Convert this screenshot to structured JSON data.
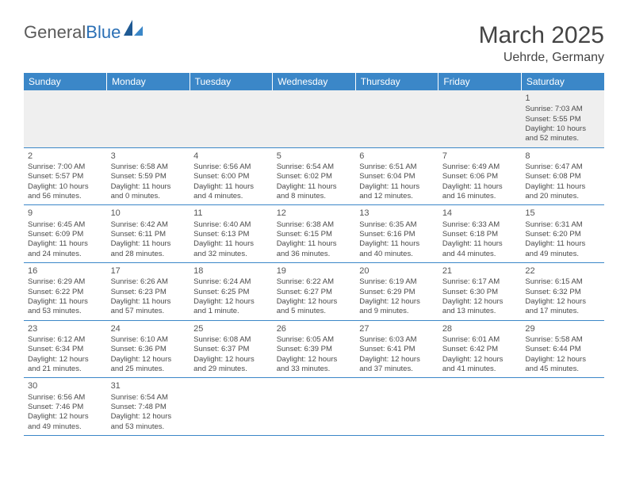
{
  "logo": {
    "text1": "General",
    "text2": "Blue"
  },
  "title": "March 2025",
  "location": "Uehrde, Germany",
  "dayHeaders": [
    "Sunday",
    "Monday",
    "Tuesday",
    "Wednesday",
    "Thursday",
    "Friday",
    "Saturday"
  ],
  "colors": {
    "headerBg": "#3b87c8",
    "headerText": "#ffffff",
    "rowBorder": "#3b87c8",
    "firstRowBg": "#efefef",
    "logoBlue": "#2a6fb5",
    "textGray": "#5a5a5a"
  },
  "weeks": [
    [
      null,
      null,
      null,
      null,
      null,
      null,
      {
        "n": "1",
        "sr": "Sunrise: 7:03 AM",
        "ss": "Sunset: 5:55 PM",
        "d1": "Daylight: 10 hours",
        "d2": "and 52 minutes."
      }
    ],
    [
      {
        "n": "2",
        "sr": "Sunrise: 7:00 AM",
        "ss": "Sunset: 5:57 PM",
        "d1": "Daylight: 10 hours",
        "d2": "and 56 minutes."
      },
      {
        "n": "3",
        "sr": "Sunrise: 6:58 AM",
        "ss": "Sunset: 5:59 PM",
        "d1": "Daylight: 11 hours",
        "d2": "and 0 minutes."
      },
      {
        "n": "4",
        "sr": "Sunrise: 6:56 AM",
        "ss": "Sunset: 6:00 PM",
        "d1": "Daylight: 11 hours",
        "d2": "and 4 minutes."
      },
      {
        "n": "5",
        "sr": "Sunrise: 6:54 AM",
        "ss": "Sunset: 6:02 PM",
        "d1": "Daylight: 11 hours",
        "d2": "and 8 minutes."
      },
      {
        "n": "6",
        "sr": "Sunrise: 6:51 AM",
        "ss": "Sunset: 6:04 PM",
        "d1": "Daylight: 11 hours",
        "d2": "and 12 minutes."
      },
      {
        "n": "7",
        "sr": "Sunrise: 6:49 AM",
        "ss": "Sunset: 6:06 PM",
        "d1": "Daylight: 11 hours",
        "d2": "and 16 minutes."
      },
      {
        "n": "8",
        "sr": "Sunrise: 6:47 AM",
        "ss": "Sunset: 6:08 PM",
        "d1": "Daylight: 11 hours",
        "d2": "and 20 minutes."
      }
    ],
    [
      {
        "n": "9",
        "sr": "Sunrise: 6:45 AM",
        "ss": "Sunset: 6:09 PM",
        "d1": "Daylight: 11 hours",
        "d2": "and 24 minutes."
      },
      {
        "n": "10",
        "sr": "Sunrise: 6:42 AM",
        "ss": "Sunset: 6:11 PM",
        "d1": "Daylight: 11 hours",
        "d2": "and 28 minutes."
      },
      {
        "n": "11",
        "sr": "Sunrise: 6:40 AM",
        "ss": "Sunset: 6:13 PM",
        "d1": "Daylight: 11 hours",
        "d2": "and 32 minutes."
      },
      {
        "n": "12",
        "sr": "Sunrise: 6:38 AM",
        "ss": "Sunset: 6:15 PM",
        "d1": "Daylight: 11 hours",
        "d2": "and 36 minutes."
      },
      {
        "n": "13",
        "sr": "Sunrise: 6:35 AM",
        "ss": "Sunset: 6:16 PM",
        "d1": "Daylight: 11 hours",
        "d2": "and 40 minutes."
      },
      {
        "n": "14",
        "sr": "Sunrise: 6:33 AM",
        "ss": "Sunset: 6:18 PM",
        "d1": "Daylight: 11 hours",
        "d2": "and 44 minutes."
      },
      {
        "n": "15",
        "sr": "Sunrise: 6:31 AM",
        "ss": "Sunset: 6:20 PM",
        "d1": "Daylight: 11 hours",
        "d2": "and 49 minutes."
      }
    ],
    [
      {
        "n": "16",
        "sr": "Sunrise: 6:29 AM",
        "ss": "Sunset: 6:22 PM",
        "d1": "Daylight: 11 hours",
        "d2": "and 53 minutes."
      },
      {
        "n": "17",
        "sr": "Sunrise: 6:26 AM",
        "ss": "Sunset: 6:23 PM",
        "d1": "Daylight: 11 hours",
        "d2": "and 57 minutes."
      },
      {
        "n": "18",
        "sr": "Sunrise: 6:24 AM",
        "ss": "Sunset: 6:25 PM",
        "d1": "Daylight: 12 hours",
        "d2": "and 1 minute."
      },
      {
        "n": "19",
        "sr": "Sunrise: 6:22 AM",
        "ss": "Sunset: 6:27 PM",
        "d1": "Daylight: 12 hours",
        "d2": "and 5 minutes."
      },
      {
        "n": "20",
        "sr": "Sunrise: 6:19 AM",
        "ss": "Sunset: 6:29 PM",
        "d1": "Daylight: 12 hours",
        "d2": "and 9 minutes."
      },
      {
        "n": "21",
        "sr": "Sunrise: 6:17 AM",
        "ss": "Sunset: 6:30 PM",
        "d1": "Daylight: 12 hours",
        "d2": "and 13 minutes."
      },
      {
        "n": "22",
        "sr": "Sunrise: 6:15 AM",
        "ss": "Sunset: 6:32 PM",
        "d1": "Daylight: 12 hours",
        "d2": "and 17 minutes."
      }
    ],
    [
      {
        "n": "23",
        "sr": "Sunrise: 6:12 AM",
        "ss": "Sunset: 6:34 PM",
        "d1": "Daylight: 12 hours",
        "d2": "and 21 minutes."
      },
      {
        "n": "24",
        "sr": "Sunrise: 6:10 AM",
        "ss": "Sunset: 6:36 PM",
        "d1": "Daylight: 12 hours",
        "d2": "and 25 minutes."
      },
      {
        "n": "25",
        "sr": "Sunrise: 6:08 AM",
        "ss": "Sunset: 6:37 PM",
        "d1": "Daylight: 12 hours",
        "d2": "and 29 minutes."
      },
      {
        "n": "26",
        "sr": "Sunrise: 6:05 AM",
        "ss": "Sunset: 6:39 PM",
        "d1": "Daylight: 12 hours",
        "d2": "and 33 minutes."
      },
      {
        "n": "27",
        "sr": "Sunrise: 6:03 AM",
        "ss": "Sunset: 6:41 PM",
        "d1": "Daylight: 12 hours",
        "d2": "and 37 minutes."
      },
      {
        "n": "28",
        "sr": "Sunrise: 6:01 AM",
        "ss": "Sunset: 6:42 PM",
        "d1": "Daylight: 12 hours",
        "d2": "and 41 minutes."
      },
      {
        "n": "29",
        "sr": "Sunrise: 5:58 AM",
        "ss": "Sunset: 6:44 PM",
        "d1": "Daylight: 12 hours",
        "d2": "and 45 minutes."
      }
    ],
    [
      {
        "n": "30",
        "sr": "Sunrise: 6:56 AM",
        "ss": "Sunset: 7:46 PM",
        "d1": "Daylight: 12 hours",
        "d2": "and 49 minutes."
      },
      {
        "n": "31",
        "sr": "Sunrise: 6:54 AM",
        "ss": "Sunset: 7:48 PM",
        "d1": "Daylight: 12 hours",
        "d2": "and 53 minutes."
      },
      null,
      null,
      null,
      null,
      null
    ]
  ]
}
